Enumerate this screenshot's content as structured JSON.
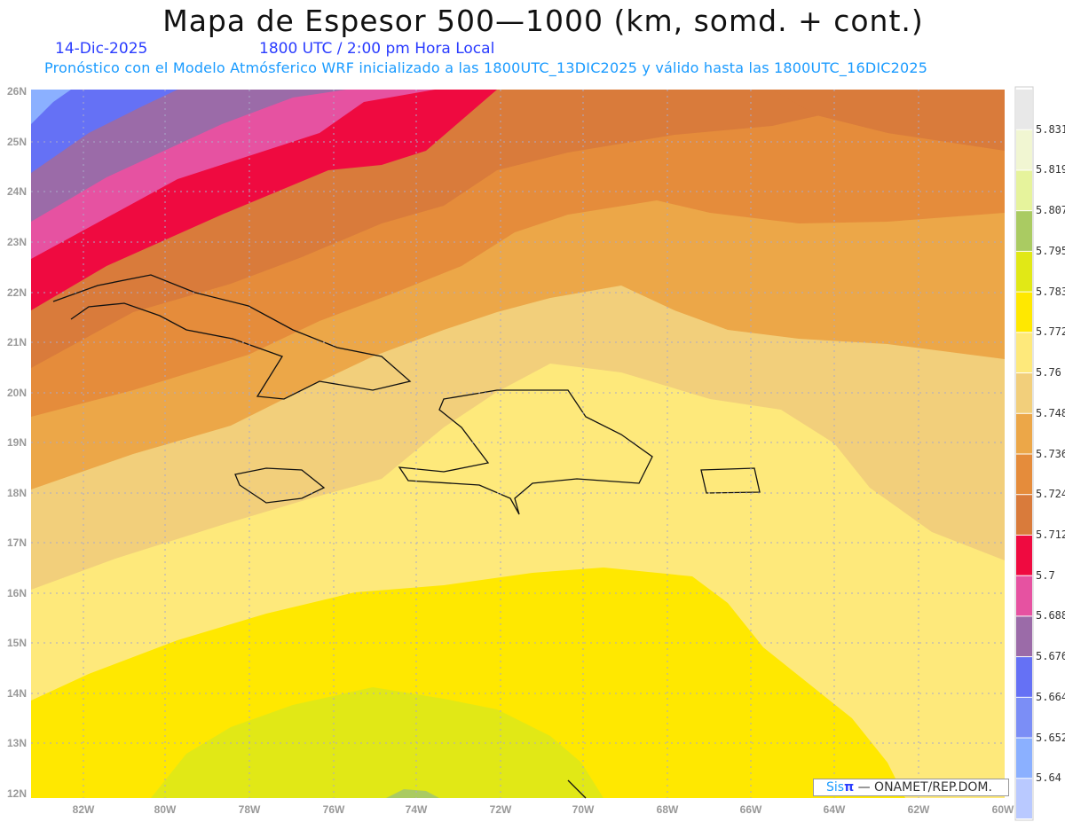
{
  "header": {
    "title": "Mapa de Espesor 500—1000 (km, somd. + cont.)",
    "date": "14-Dic-2025",
    "time": "1800 UTC / 2:00 pm Hora Local",
    "forecast_info": "Pronóstico con el Modelo Atmósferico WRF inicializado a las 1800UTC_13DIC2025 y válido hasta las  1800UTC_16DIC2025"
  },
  "axes": {
    "lat_labels": [
      "26N",
      "25N",
      "24N",
      "23N",
      "22N",
      "21N",
      "20N",
      "19N",
      "18N",
      "17N",
      "16N",
      "15N",
      "14N",
      "13N",
      "12N"
    ],
    "lon_labels": [
      "82W",
      "80W",
      "78W",
      "76W",
      "74W",
      "72W",
      "70W",
      "68W",
      "66W",
      "64W",
      "62W",
      "60W"
    ]
  },
  "colorbar": {
    "labels": [
      "5.831",
      "5.819",
      "5.807",
      "5.795",
      "5.783",
      "5.772",
      "5.76",
      "5.748",
      "5.736",
      "5.724",
      "5.712",
      "5.7",
      "5.688",
      "5.676",
      "5.664",
      "5.652",
      "5.64"
    ],
    "colors": [
      "#e8e8e8",
      "#f1f6d2",
      "#e6f39c",
      "#aacb62",
      "#e1e816",
      "#ffe800",
      "#fee97b",
      "#f2cf7b",
      "#eca748",
      "#e58c3b",
      "#d97b3b",
      "#ef0a40",
      "#e652a1",
      "#9b6ba8",
      "#6571f5",
      "#7b8ef6",
      "#8bb0ff",
      "#b9c9ff"
    ]
  },
  "credit": {
    "brand_sis": "Sis",
    "brand_pi": "π",
    "text": "—  ONAMET/REP.DOM."
  }
}
